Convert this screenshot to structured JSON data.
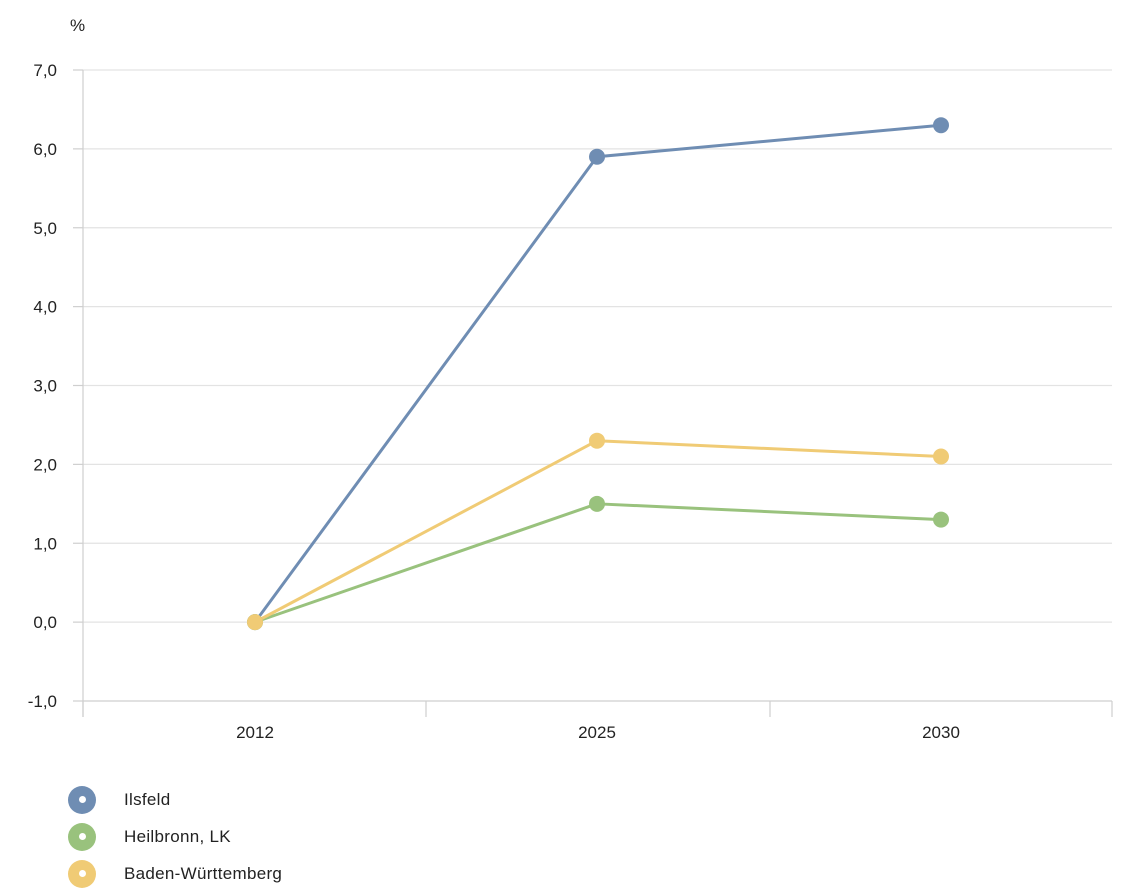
{
  "chart_data": {
    "type": "line",
    "unit_label": "%",
    "categories": [
      "2012",
      "2025",
      "2030"
    ],
    "ylim": [
      -1.0,
      7.0
    ],
    "y_ticks": [
      "7,0",
      "6,0",
      "5,0",
      "4,0",
      "3,0",
      "2,0",
      "1,0",
      "0,0",
      "-1,0"
    ],
    "y_tick_values": [
      7,
      6,
      5,
      4,
      3,
      2,
      1,
      0,
      -1
    ],
    "grid": true,
    "legend_position": "bottom-left",
    "series": [
      {
        "name": "Ilsfeld",
        "color": "#6f8db3",
        "values": [
          0.0,
          5.9,
          6.3
        ]
      },
      {
        "name": "Heilbronn, LK",
        "color": "#99c27d",
        "values": [
          0.0,
          1.5,
          1.3
        ]
      },
      {
        "name": "Baden-Württemberg",
        "color": "#f0cb75",
        "values": [
          0.0,
          2.3,
          2.1
        ]
      }
    ]
  }
}
